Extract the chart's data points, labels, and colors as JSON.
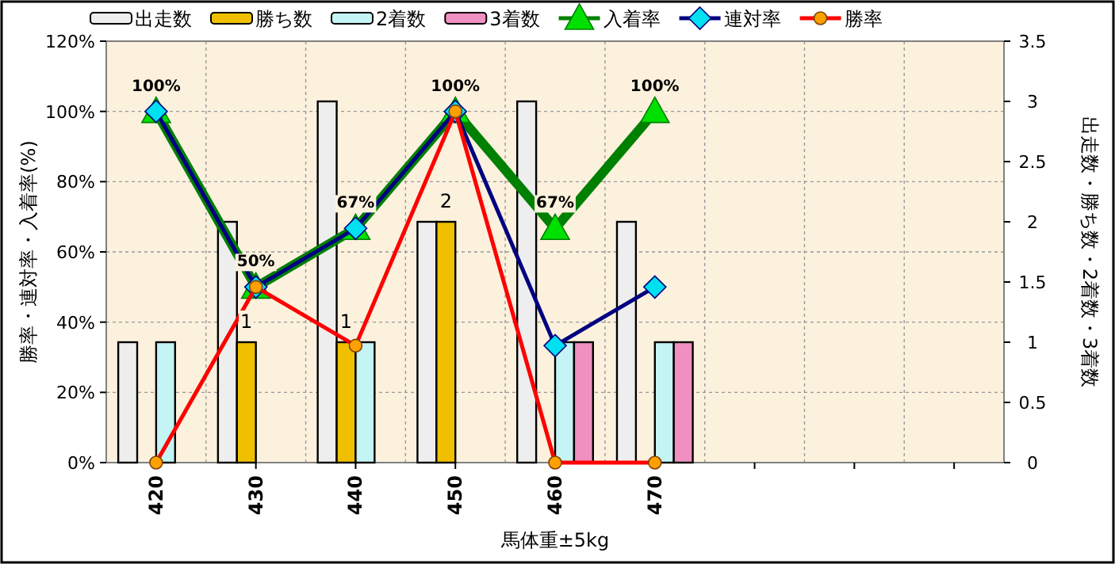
{
  "chart_data": {
    "type": "bar",
    "xlabel": "馬体重±5kg",
    "ylabel": "勝率・連対率・入着率(%)",
    "y2label": "出走数・勝ち数・2着数・3着数",
    "categories": [
      "420",
      "430",
      "440",
      "450",
      "460",
      "470",
      null,
      null,
      null
    ],
    "series": [
      {
        "name": "出走数",
        "color": "#eeeeee",
        "axis": "y2",
        "values": [
          1,
          2,
          3,
          2,
          3,
          2,
          null,
          null,
          null
        ]
      },
      {
        "name": "勝ち数",
        "color": "#f0c000",
        "axis": "y2",
        "values": [
          0,
          1,
          1,
          2,
          0,
          0,
          null,
          null,
          null
        ],
        "value_labels": [
          null,
          "1",
          "1",
          "2",
          null,
          null,
          null,
          null,
          null
        ]
      },
      {
        "name": "2着数",
        "color": "#c4f4f4",
        "axis": "y2",
        "values": [
          1,
          0,
          1,
          0,
          1,
          1,
          null,
          null,
          null
        ]
      },
      {
        "name": "3着数",
        "color": "#f090c0",
        "axis": "y2",
        "values": [
          0,
          0,
          0,
          0,
          1,
          1,
          null,
          null,
          null
        ]
      },
      {
        "name": "入着率",
        "type": "line",
        "color": "#008000",
        "marker": "triangle",
        "values": [
          100,
          50,
          66.7,
          100,
          66.7,
          100,
          null,
          null,
          null
        ],
        "value_labels": [
          "100%",
          "50%",
          "67%",
          "100%",
          "67%",
          "100%",
          null,
          null,
          null
        ]
      },
      {
        "name": "連対率",
        "type": "line",
        "color": "#000080",
        "marker": "diamond",
        "values": [
          100,
          50,
          66.7,
          100,
          33.3,
          50,
          null,
          null,
          null
        ]
      },
      {
        "name": "勝率",
        "type": "line",
        "color": "#ff0000",
        "marker": "circle",
        "values": [
          0,
          50,
          33.3,
          100,
          0,
          0,
          null,
          null,
          null
        ]
      }
    ],
    "ylim": [
      0,
      120
    ],
    "yticks": [
      {
        "value": 0,
        "label": "0%"
      },
      {
        "value": 20,
        "label": "20%"
      },
      {
        "value": 40,
        "label": "40%"
      },
      {
        "value": 60,
        "label": "60%"
      },
      {
        "value": 80,
        "label": "80%"
      },
      {
        "value": 100,
        "label": "100%"
      },
      {
        "value": 120,
        "label": "120%"
      }
    ],
    "y2lim": [
      0,
      3.5
    ],
    "y2ticks": [
      0,
      0.5,
      1,
      1.5,
      2,
      2.5,
      3,
      3.5
    ],
    "grid": true,
    "legend": "top"
  }
}
